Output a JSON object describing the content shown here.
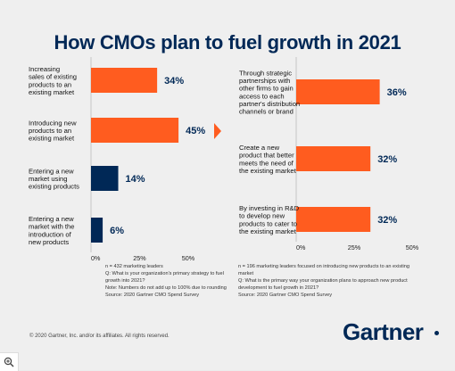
{
  "title": "How CMOs plan to fuel growth in 2021",
  "colors": {
    "navy": "#002856",
    "orange": "#FF5C1F",
    "background": "#EFEFEF"
  },
  "chart_data": [
    {
      "type": "bar",
      "orientation": "horizontal",
      "categories": [
        "Increasing sales of existing products to an existing market",
        "Introducing new products to an existing market",
        "Entering a new market using existing products",
        "Entering a new market with the introduction of new products"
      ],
      "category_lines": [
        [
          "Increasing",
          "sales of existing",
          "products to an",
          "existing market"
        ],
        [
          "Introducing new",
          "products to an",
          "existing market"
        ],
        [
          "Entering a new",
          "market using",
          "existing products"
        ],
        [
          "Entering a new",
          "market with the",
          "introduction of",
          "new products"
        ]
      ],
      "values": [
        34,
        45,
        14,
        6
      ],
      "value_labels": [
        "34%",
        "45%",
        "14%",
        "6%"
      ],
      "bar_colors": [
        "#FF5C1F",
        "#FF5C1F",
        "#002856",
        "#002856"
      ],
      "xlim": [
        0,
        50
      ],
      "xticks": [
        "0%",
        "25%",
        "50%"
      ],
      "notes": [
        "n = 432 marketing leaders",
        "Q: What is your organization's primary strategy to fuel growth into 2021?",
        "Note: Numbers do not add up to 100% due to rounding",
        "Source: 2020 Gartner CMO Spend Survey"
      ]
    },
    {
      "type": "bar",
      "orientation": "horizontal",
      "categories": [
        "Through strategic partnerships with other firms to gain access to each partner's distribution channels or brand",
        "Create a new product that better meets the need of the existing market",
        "By investing in R&D to develop new products to cater to the existing market"
      ],
      "category_lines": [
        [
          "Through strategic",
          "partnerships with",
          "other firms to gain",
          "access to each",
          "partner's distribution",
          "channels or brand"
        ],
        [
          "Create a new",
          "product that better",
          "meets the need of",
          "the existing market"
        ],
        [
          "By investing in R&D",
          "to develop new",
          "products to cater to",
          "the existing market"
        ]
      ],
      "values": [
        36,
        32,
        32
      ],
      "value_labels": [
        "36%",
        "32%",
        "32%"
      ],
      "bar_colors": [
        "#FF5C1F",
        "#FF5C1F",
        "#FF5C1F"
      ],
      "xlim": [
        0,
        50
      ],
      "xticks": [
        "0%",
        "25%",
        "50%"
      ],
      "notes": [
        "n = 196 marketing leaders focused on introducing new products to an existing market",
        "Q: What is the primary way your organization plans to approach new product development to fuel growth in 2021?",
        "Source: 2020 Gartner CMO Spend Survey"
      ]
    }
  ],
  "footer": {
    "copyright": "© 2020 Gartner, Inc. and/or its affiliates. All rights reserved.",
    "logo_text": "Gartner"
  },
  "zoom_icon": "zoom-in-icon"
}
